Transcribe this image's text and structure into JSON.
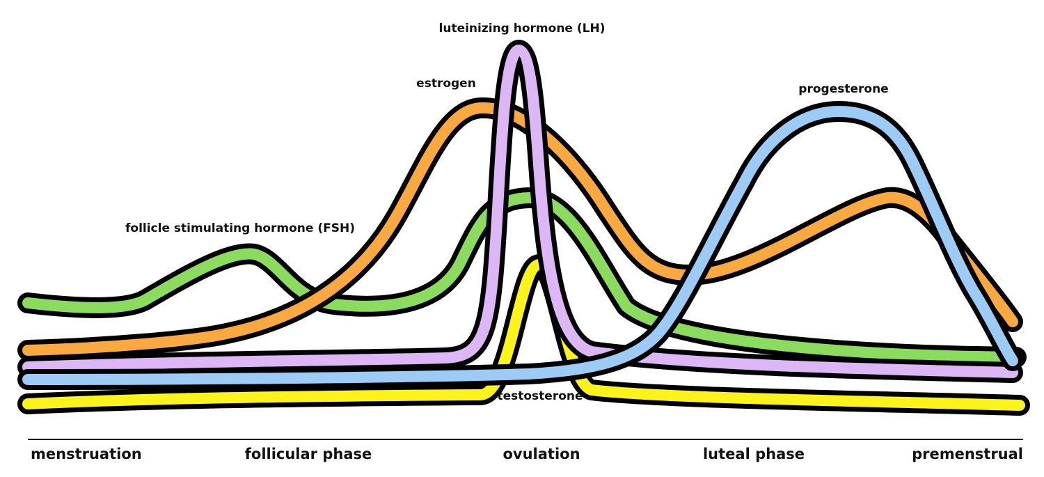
{
  "curves": [
    {
      "id": "fsh",
      "label": "follicle stimulating hormone (FSH)",
      "color": "#8bdc5e"
    },
    {
      "id": "lh",
      "label": "luteinizing hormone (LH)",
      "color": "#dcb6f5"
    },
    {
      "id": "estrogen",
      "label": "estrogen",
      "color": "#f9a93f"
    },
    {
      "id": "progesterone",
      "label": "progesterone",
      "color": "#9ccbf5"
    },
    {
      "id": "testosterone",
      "label": "testosterone",
      "color": "#fcf21c"
    }
  ],
  "outline_color": "#000000",
  "phases": [
    "menstruation",
    "follicular phase",
    "ovulation",
    "luteal phase",
    "premenstrual"
  ]
}
